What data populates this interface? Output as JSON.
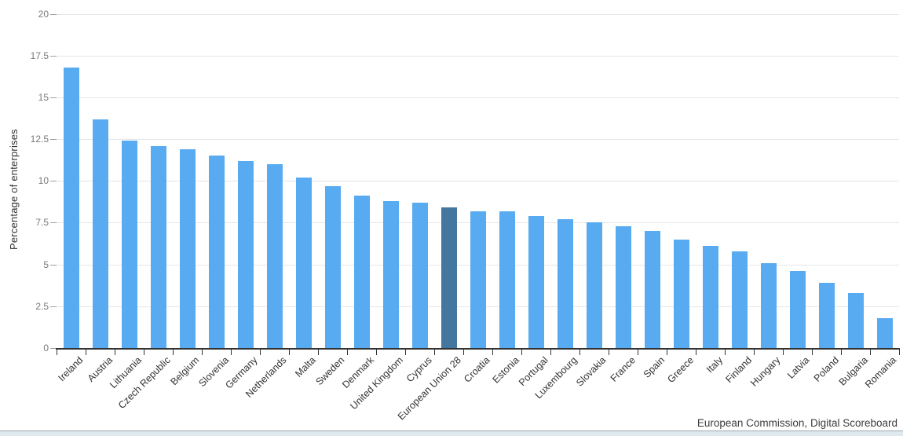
{
  "chart_data": {
    "type": "bar",
    "title": "",
    "xlabel": "",
    "ylabel": "Percentage of enterprises",
    "ylim": [
      0,
      20
    ],
    "yticks": [
      "0",
      "2.5",
      "5",
      "7.5",
      "10",
      "12.5",
      "15",
      "17.5",
      "20"
    ],
    "grid": true,
    "legend": "none",
    "categories": [
      "Ireland",
      "Austria",
      "Lithuania",
      "Czech Republic",
      "Belgium",
      "Slovenia",
      "Germany",
      "Netherlands",
      "Malta",
      "Sweden",
      "Denmark",
      "United Kingdom",
      "Cyprus",
      "European Union 28",
      "Croatia",
      "Estonia",
      "Portugal",
      "Luxembourg",
      "Slovakia",
      "France",
      "Spain",
      "Greece",
      "Italy",
      "Finland",
      "Hungary",
      "Latvia",
      "Poland",
      "Bulgaria",
      "Romania"
    ],
    "values": [
      16.8,
      13.7,
      12.4,
      12.1,
      11.9,
      11.5,
      11.2,
      11.0,
      10.2,
      9.7,
      9.1,
      8.8,
      8.7,
      8.4,
      8.2,
      8.2,
      7.9,
      7.7,
      7.5,
      7.3,
      7.0,
      6.5,
      6.1,
      5.8,
      5.1,
      4.6,
      3.9,
      3.3,
      1.8
    ],
    "highlight_category": "European Union 28",
    "colors": {
      "bar": "#59abf1",
      "highlight_bar": "#44779f",
      "gridline": "#e6e6e6",
      "axis": "#333333",
      "tick_text": "#7a7a7a",
      "label_text": "#333333"
    }
  },
  "footer": {
    "source_label": "European Commission, Digital Scoreboard"
  }
}
